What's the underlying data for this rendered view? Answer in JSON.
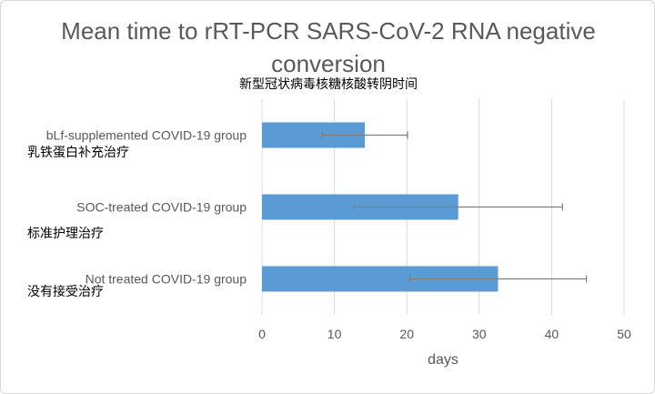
{
  "chart_data": {
    "type": "bar",
    "orientation": "horizontal",
    "title": "Mean time to rRT-PCR SARS-CoV-2 RNA negative conversion",
    "subtitle": "新型冠状病毒核糖核酸转阴时间",
    "xlabel": "days",
    "xlim": [
      0,
      50
    ],
    "xticks": [
      0,
      10,
      20,
      30,
      40,
      50
    ],
    "grid": true,
    "bar_color": "#5b9bd5",
    "error_bar_color": "#7f7f7f",
    "categories": [
      {
        "label": "bLf-supplemented COVID-19 group",
        "label_cn": "乳铁蛋白补充治疗",
        "value": 14.2,
        "error": 5.9
      },
      {
        "label": "SOC-treated COVID-19 group",
        "label_cn": "标准护理治疗",
        "value": 27.1,
        "error": 14.4
      },
      {
        "label": "Not treated COVID-19 group",
        "label_cn": "没有接受治疗",
        "value": 32.6,
        "error": 12.2
      }
    ]
  }
}
